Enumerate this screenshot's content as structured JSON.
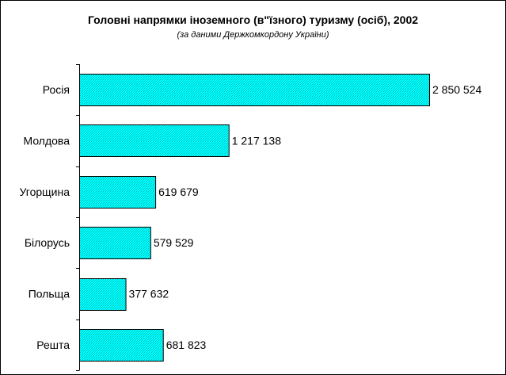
{
  "chart_data": {
    "type": "bar",
    "orientation": "horizontal",
    "title": "Головні напрямки іноземного (в\"їзного) туризму (осіб), 2002",
    "subtitle": "(за даними Держкомкордону України)",
    "categories": [
      "Росія",
      "Молдова",
      "Угорщина",
      "Білорусь",
      "Польща",
      "Решта"
    ],
    "values": [
      2850524,
      1217138,
      619679,
      579529,
      377632,
      681823
    ],
    "value_labels": [
      "2 850 524",
      "1 217 138",
      "619 679",
      "579 529",
      "377 632",
      "681 823"
    ],
    "xlabel": "",
    "ylabel": "",
    "grid": false,
    "legend": "none",
    "bar_color": "#00FFFF",
    "bar_edge_color": "#000000"
  }
}
